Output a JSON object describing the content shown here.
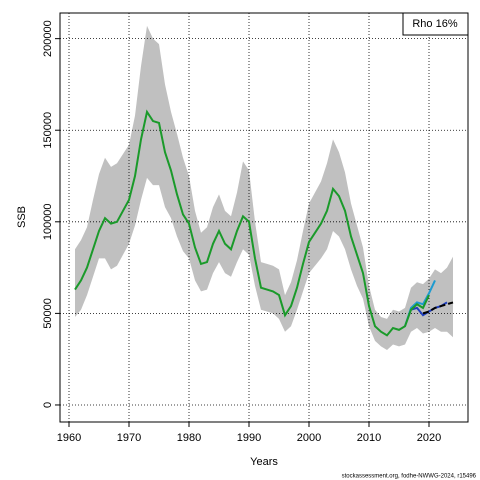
{
  "chart_data": {
    "type": "line",
    "ylabel": "SSB",
    "xlabel": "Years",
    "annotation": "Rho 16%",
    "footer": "stockassessment.org, fodhe-NWWG-2024, r15496",
    "xlim": [
      1958.5,
      2026.5
    ],
    "xticks": [
      1960,
      1970,
      1980,
      1990,
      2000,
      2010,
      2020
    ],
    "ylim": [
      -9300,
      214000
    ],
    "yticks": [
      0,
      50000,
      100000,
      150000,
      200000
    ],
    "grid": true,
    "band": {
      "color": "#c0c0c0",
      "x": [
        1961,
        1962,
        1963,
        1964,
        1965,
        1966,
        1967,
        1968,
        1969,
        1970,
        1971,
        1972,
        1973,
        1974,
        1975,
        1976,
        1977,
        1978,
        1979,
        1980,
        1981,
        1982,
        1983,
        1984,
        1985,
        1986,
        1987,
        1988,
        1989,
        1990,
        1991,
        1992,
        1993,
        1994,
        1995,
        1996,
        1997,
        1998,
        1999,
        2000,
        2001,
        2002,
        2003,
        2004,
        2005,
        2006,
        2007,
        2008,
        2009,
        2010,
        2011,
        2012,
        2013,
        2014,
        2015,
        2016,
        2017,
        2018,
        2019,
        2020,
        2021,
        2022,
        2023,
        2024
      ],
      "upper": [
        85000,
        90000,
        97000,
        112000,
        126000,
        135000,
        130000,
        132000,
        137000,
        142000,
        158000,
        185000,
        207000,
        200000,
        197000,
        175000,
        160000,
        148000,
        135000,
        125000,
        106000,
        94000,
        97000,
        108000,
        115000,
        106000,
        103000,
        116000,
        133000,
        128000,
        100000,
        78000,
        77000,
        76000,
        74000,
        60000,
        67000,
        79000,
        95000,
        110000,
        116000,
        122000,
        132000,
        145000,
        138000,
        127000,
        110000,
        98000,
        86000,
        65000,
        52000,
        48000,
        47000,
        52000,
        51000,
        53000,
        64000,
        67000,
        66000,
        69000,
        74000,
        72000,
        75000,
        81000
      ],
      "lower": [
        48000,
        52000,
        60000,
        70000,
        80000,
        80000,
        74000,
        76000,
        82000,
        88000,
        98000,
        112000,
        124000,
        120000,
        120000,
        108000,
        102000,
        92000,
        84000,
        80000,
        68000,
        62000,
        63000,
        72000,
        78000,
        72000,
        70000,
        78000,
        85000,
        82000,
        65000,
        52000,
        51000,
        50000,
        47000,
        40000,
        43000,
        52000,
        62000,
        72000,
        76000,
        80000,
        85000,
        95000,
        92000,
        85000,
        74000,
        65000,
        58000,
        43000,
        35000,
        32000,
        30000,
        33000,
        32000,
        33000,
        40000,
        42000,
        39000,
        40000,
        42000,
        40000,
        40000,
        37000
      ]
    },
    "series": [
      {
        "color": "#1e9bd0",
        "x": [
          2016,
          2017,
          2018,
          2019,
          2020,
          2021
        ],
        "values": [
          43000,
          53000,
          56000,
          55000,
          61000,
          68000
        ]
      },
      {
        "color": "#1f3fbf",
        "x": [
          2017,
          2018,
          2019,
          2020,
          2021,
          2022,
          2023
        ],
        "values": [
          52000,
          53000,
          49000,
          51000,
          53000,
          54000,
          56000
        ]
      },
      {
        "color": "#000000",
        "dashed": true,
        "x": [
          2019,
          2020,
          2021,
          2022,
          2023,
          2024
        ],
        "values": [
          50000,
          51000,
          53000,
          54000,
          55000,
          56000
        ]
      },
      {
        "color": "#1a9a2a",
        "x": [
          1961,
          1962,
          1963,
          1964,
          1965,
          1966,
          1967,
          1968,
          1969,
          1970,
          1971,
          1972,
          1973,
          1974,
          1975,
          1976,
          1977,
          1978,
          1979,
          1980,
          1981,
          1982,
          1983,
          1984,
          1985,
          1986,
          1987,
          1988,
          1989,
          1990,
          1991,
          1992,
          1993,
          1994,
          1995,
          1996,
          1997,
          1998,
          1999,
          2000,
          2001,
          2002,
          2003,
          2004,
          2005,
          2006,
          2007,
          2008,
          2009,
          2010,
          2011,
          2012,
          2013,
          2014,
          2015,
          2016,
          2017,
          2018,
          2019,
          2020
        ],
        "values": [
          63000,
          68000,
          75000,
          85000,
          95000,
          102000,
          99000,
          100000,
          106000,
          112000,
          125000,
          145000,
          160000,
          155000,
          154000,
          138000,
          128000,
          115000,
          104000,
          99000,
          86000,
          77000,
          78000,
          88000,
          95000,
          88000,
          85000,
          95000,
          103000,
          100000,
          80000,
          64000,
          63000,
          62000,
          60000,
          49000,
          54000,
          64000,
          77000,
          89000,
          94000,
          99000,
          106000,
          118000,
          114000,
          106000,
          92000,
          82000,
          72000,
          54000,
          43000,
          40000,
          38000,
          42000,
          41000,
          43000,
          52000,
          55000,
          53000,
          60000
        ]
      }
    ]
  }
}
